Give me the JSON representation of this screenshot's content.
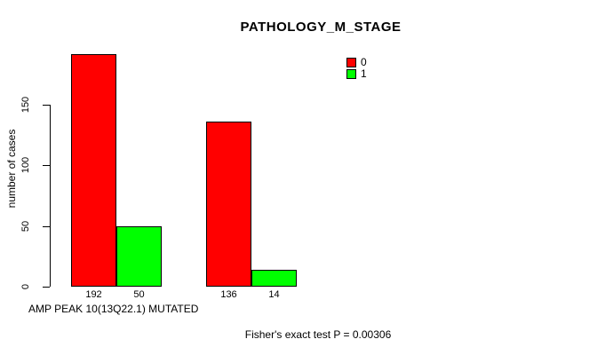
{
  "chart_data": {
    "type": "bar",
    "title": "PATHOLOGY_M_STAGE",
    "xlabel": "AMP PEAK 10(13Q22.1) MUTATED",
    "ylabel": "number of cases",
    "ylim": [
      0,
      192
    ],
    "yticks": [
      0,
      50,
      100,
      150
    ],
    "grid": false,
    "legend_position": "top-right",
    "bar_value_labels_shown": true,
    "series": [
      {
        "name": "0",
        "color": "#ff0000",
        "values": [
          192,
          136
        ]
      },
      {
        "name": "1",
        "color": "#00ff00",
        "values": [
          50,
          14
        ]
      }
    ],
    "annotation": "Fisher's exact test P = 0.00306"
  }
}
